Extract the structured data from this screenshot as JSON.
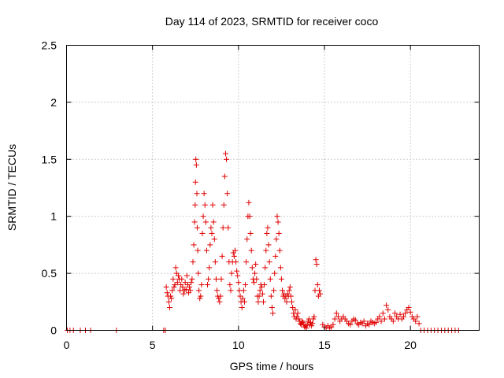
{
  "chart_data": {
    "type": "scatter",
    "title": "Day 114 of 2023, SRMTID for receiver coco",
    "xlabel": "GPS time / hours",
    "ylabel": "SRMTID / TECUs",
    "xlim": [
      0,
      24
    ],
    "ylim": [
      0,
      2.5
    ],
    "xticks": [
      0,
      5,
      10,
      15,
      20
    ],
    "xtick_labels": [
      "0",
      "5",
      "10",
      "15",
      "20"
    ],
    "yticks": [
      0,
      0.5,
      1,
      1.5,
      2,
      2.5
    ],
    "ytick_labels": [
      "0",
      "0.5",
      "1",
      "1.5",
      "2",
      "2.5"
    ],
    "grid": true,
    "marker": "+",
    "color": "#e00000",
    "series": [
      {
        "name": "SRMTID",
        "x": [
          0.05,
          0.2,
          0.4,
          0.8,
          1.1,
          1.4,
          2.9,
          5.65,
          5.75,
          5.8,
          5.85,
          5.9,
          5.95,
          6.0,
          6.05,
          6.1,
          6.15,
          6.2,
          6.25,
          6.3,
          6.35,
          6.4,
          6.45,
          6.5,
          6.55,
          6.6,
          6.65,
          6.7,
          6.75,
          6.8,
          6.85,
          6.9,
          6.95,
          7.0,
          7.05,
          7.1,
          7.15,
          7.2,
          7.25,
          7.3,
          7.35,
          7.4,
          7.45,
          7.48,
          7.5,
          7.52,
          7.55,
          7.58,
          7.6,
          7.63,
          7.66,
          7.7,
          7.75,
          7.8,
          7.85,
          7.9,
          7.95,
          8.0,
          8.05,
          8.1,
          8.15,
          8.2,
          8.25,
          8.3,
          8.35,
          8.4,
          8.45,
          8.5,
          8.55,
          8.6,
          8.65,
          8.7,
          8.75,
          8.8,
          8.85,
          8.9,
          8.95,
          9.0,
          9.05,
          9.1,
          9.15,
          9.2,
          9.25,
          9.3,
          9.35,
          9.4,
          9.45,
          9.5,
          9.55,
          9.6,
          9.65,
          9.7,
          9.75,
          9.8,
          9.85,
          9.9,
          9.95,
          10.0,
          10.05,
          10.1,
          10.15,
          10.2,
          10.25,
          10.3,
          10.35,
          10.4,
          10.45,
          10.5,
          10.55,
          10.6,
          10.65,
          10.7,
          10.75,
          10.8,
          10.85,
          10.9,
          10.95,
          11.0,
          11.05,
          11.1,
          11.15,
          11.2,
          11.25,
          11.3,
          11.35,
          11.4,
          11.45,
          11.5,
          11.55,
          11.6,
          11.65,
          11.7,
          11.75,
          11.8,
          11.85,
          11.9,
          11.95,
          12.0,
          12.05,
          12.1,
          12.15,
          12.2,
          12.25,
          12.3,
          12.35,
          12.4,
          12.45,
          12.5,
          12.55,
          12.6,
          12.65,
          12.7,
          12.75,
          12.8,
          12.85,
          12.9,
          12.95,
          13.0,
          13.05,
          13.1,
          13.15,
          13.2,
          13.25,
          13.3,
          13.35,
          13.4,
          13.45,
          13.5,
          13.55,
          13.6,
          13.65,
          13.7,
          13.75,
          13.8,
          13.85,
          13.9,
          13.95,
          14.0,
          14.05,
          14.1,
          14.15,
          14.2,
          14.25,
          14.3,
          14.35,
          14.4,
          14.45,
          14.5,
          14.55,
          14.6,
          14.65,
          14.7,
          14.75,
          14.9,
          15.0,
          15.1,
          15.2,
          15.3,
          15.4,
          15.5,
          15.6,
          15.7,
          15.8,
          15.9,
          16.0,
          16.1,
          16.2,
          16.3,
          16.4,
          16.5,
          16.6,
          16.7,
          16.8,
          16.9,
          17.0,
          17.1,
          17.2,
          17.3,
          17.4,
          17.5,
          17.6,
          17.7,
          17.8,
          17.9,
          18.0,
          18.1,
          18.2,
          18.3,
          18.4,
          18.5,
          18.6,
          18.7,
          18.8,
          18.9,
          19.0,
          19.1,
          19.2,
          19.3,
          19.4,
          19.5,
          19.6,
          19.7,
          19.8,
          19.9,
          20.0,
          20.1,
          20.2,
          20.3,
          20.4,
          20.5,
          20.6,
          20.8,
          21.0,
          21.2,
          21.4,
          21.6,
          21.8,
          22.0,
          22.2,
          22.4,
          22.6,
          22.8
        ],
        "y": [
          0,
          0,
          0,
          0,
          0,
          0,
          0,
          0,
          0,
          0.38,
          0.33,
          0.3,
          0.25,
          0.2,
          0.3,
          0.28,
          0.35,
          0.45,
          0.38,
          0.4,
          0.55,
          0.5,
          0.42,
          0.48,
          0.45,
          0.35,
          0.4,
          0.45,
          0.38,
          0.32,
          0.35,
          0.42,
          0.36,
          0.48,
          0.4,
          0.33,
          0.38,
          0.35,
          0.42,
          0.45,
          0.6,
          0.75,
          0.95,
          1.1,
          1.3,
          1.5,
          1.45,
          1.2,
          0.9,
          0.7,
          0.5,
          0.35,
          0.28,
          0.3,
          0.4,
          0.85,
          1.0,
          1.2,
          1.1,
          0.95,
          0.7,
          0.4,
          0.45,
          0.55,
          0.75,
          0.9,
          0.85,
          1.1,
          0.95,
          0.8,
          0.6,
          0.45,
          0.35,
          0.3,
          0.28,
          0.25,
          0.3,
          0.45,
          0.65,
          0.9,
          1.1,
          1.35,
          1.55,
          1.5,
          1.2,
          0.9,
          0.6,
          0.4,
          0.35,
          0.5,
          0.6,
          0.68,
          0.65,
          0.7,
          0.6,
          0.52,
          0.48,
          0.42,
          0.35,
          0.3,
          0.25,
          0.2,
          0.28,
          0.35,
          0.25,
          0.4,
          0.6,
          0.8,
          1.0,
          1.12,
          1.0,
          0.85,
          0.7,
          0.55,
          0.45,
          0.42,
          0.5,
          0.58,
          0.45,
          0.3,
          0.25,
          0.3,
          0.35,
          0.4,
          0.38,
          0.32,
          0.25,
          0.4,
          0.55,
          0.7,
          0.85,
          0.9,
          0.75,
          0.6,
          0.45,
          0.3,
          0.2,
          0.15,
          0.35,
          0.5,
          0.65,
          0.8,
          1.0,
          0.95,
          0.85,
          0.7,
          0.55,
          0.45,
          0.35,
          0.3,
          0.32,
          0.28,
          0.3,
          0.25,
          0.32,
          0.3,
          0.35,
          0.38,
          0.3,
          0.25,
          0.2,
          0.15,
          0.12,
          0.18,
          0.1,
          0.12,
          0.15,
          0.1,
          0.08,
          0.06,
          0.05,
          0.08,
          0.07,
          0.05,
          0.03,
          0.04,
          0.02,
          0.05,
          0.08,
          0.1,
          0.05,
          0.07,
          0.04,
          0.06,
          0.1,
          0.12,
          0.35,
          0.62,
          0.58,
          0.4,
          0.3,
          0.35,
          0.32,
          0.05,
          0.03,
          0.02,
          0.04,
          0.02,
          0.03,
          0.05,
          0.1,
          0.15,
          0.12,
          0.08,
          0.1,
          0.12,
          0.1,
          0.08,
          0.06,
          0.05,
          0.08,
          0.1,
          0.09,
          0.06,
          0.05,
          0.07,
          0.06,
          0.08,
          0.04,
          0.06,
          0.05,
          0.08,
          0.07,
          0.06,
          0.07,
          0.1,
          0.12,
          0.08,
          0.15,
          0.1,
          0.22,
          0.18,
          0.12,
          0.1,
          0.08,
          0.15,
          0.12,
          0.1,
          0.14,
          0.1,
          0.12,
          0.15,
          0.18,
          0.2,
          0.16,
          0.12,
          0.1,
          0.08,
          0.12,
          0.06,
          0,
          0,
          0,
          0,
          0,
          0,
          0,
          0,
          0,
          0,
          0,
          0
        ]
      }
    ]
  }
}
